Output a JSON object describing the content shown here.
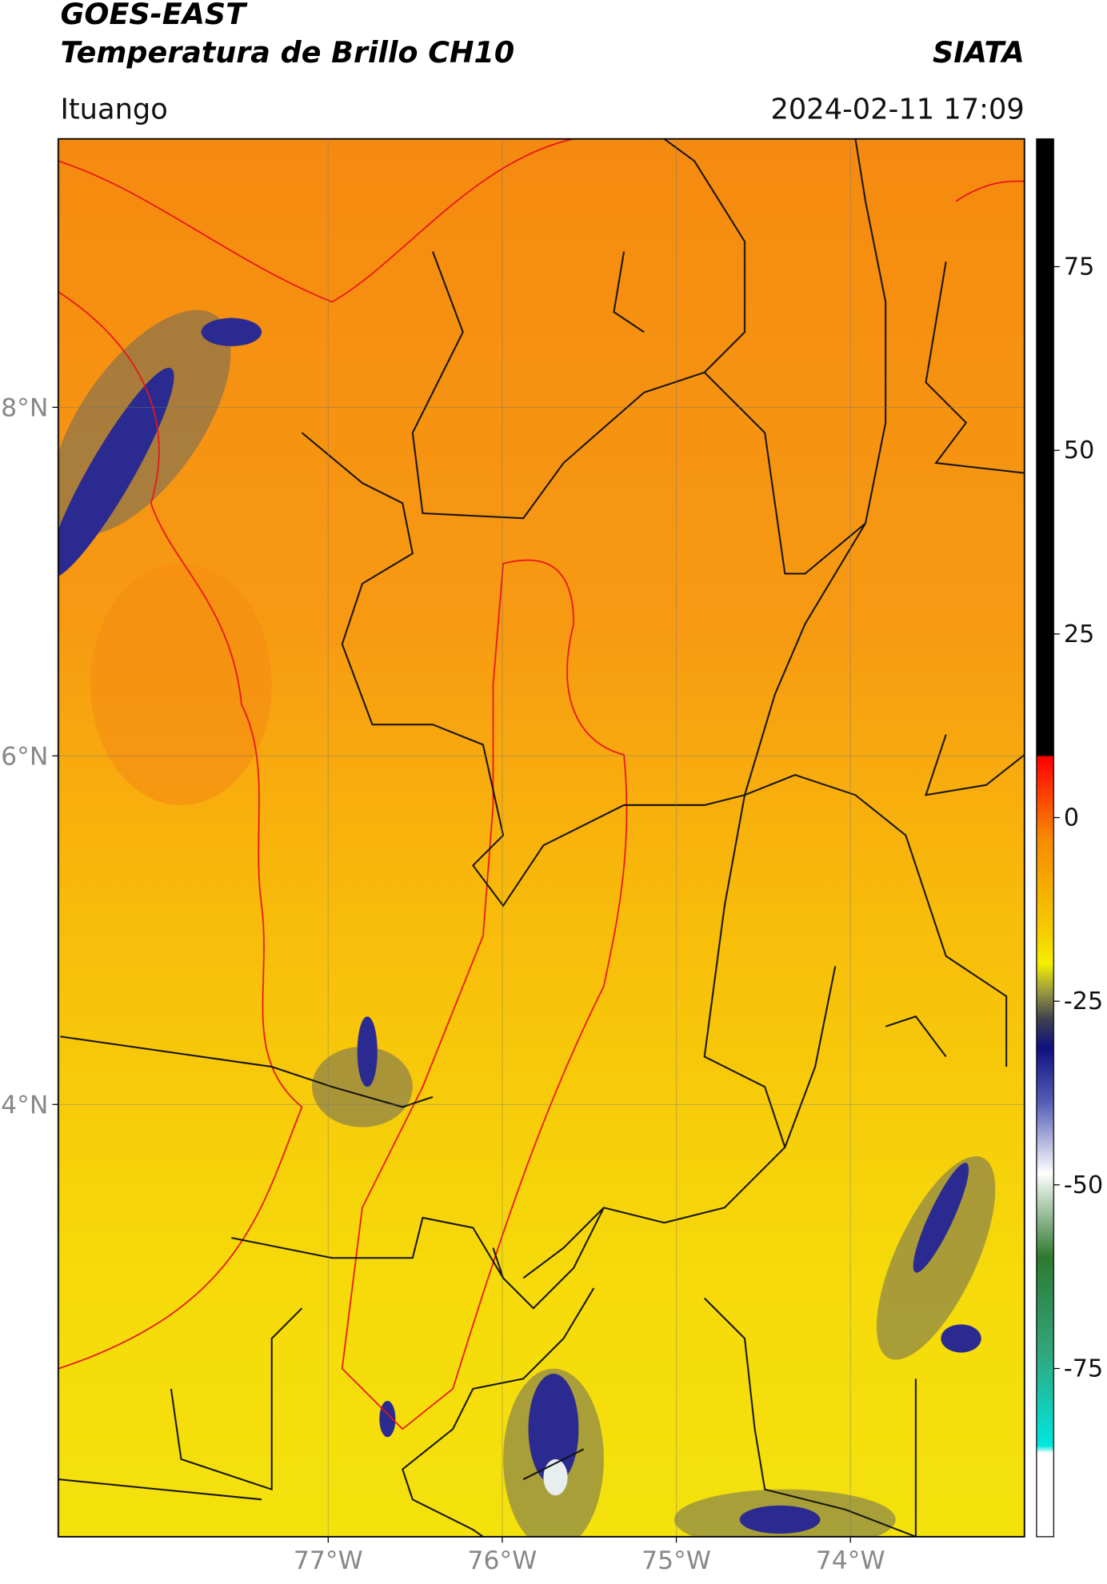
{
  "header": {
    "title": "GOES-EAST",
    "subtitle": "Temperatura de Brillo CH10",
    "source": "SIATA",
    "location": "Ituango",
    "datetime": "2024-02-11 17:09"
  },
  "map": {
    "xlim": [
      -78.55,
      -73.0
    ],
    "ylim": [
      1.52,
      9.54
    ],
    "xticks": [
      {
        "value": -77,
        "label": "77°W"
      },
      {
        "value": -76,
        "label": "76°W"
      },
      {
        "value": -75,
        "label": "75°W"
      },
      {
        "value": -74,
        "label": "74°W"
      }
    ],
    "yticks": [
      {
        "value": 8,
        "label": "8°N"
      },
      {
        "value": 6,
        "label": "6°N"
      },
      {
        "value": 4,
        "label": "4°N"
      }
    ],
    "grid": true
  },
  "colorbar": {
    "lim": [
      -97.9,
      92.4
    ],
    "ticks": [
      75,
      50,
      25,
      0,
      -25,
      -50,
      -75
    ]
  }
}
